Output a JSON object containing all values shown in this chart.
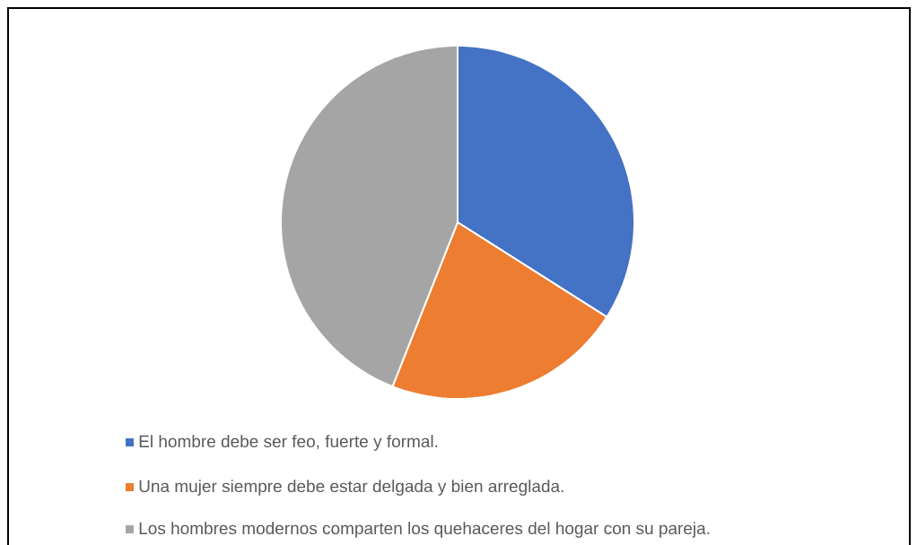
{
  "chart_data": {
    "type": "pie",
    "categories": [
      "El hombre debe ser feo, fuerte y formal.",
      "Una mujer siempre debe estar delgada y bien arreglada.",
      "Los hombres modernos comparten los quehaceres del hogar con su pareja."
    ],
    "values": [
      34,
      22,
      44
    ],
    "colors": [
      "#4472c4",
      "#ed7d31",
      "#a5a5a5"
    ],
    "legend": "bottom"
  }
}
